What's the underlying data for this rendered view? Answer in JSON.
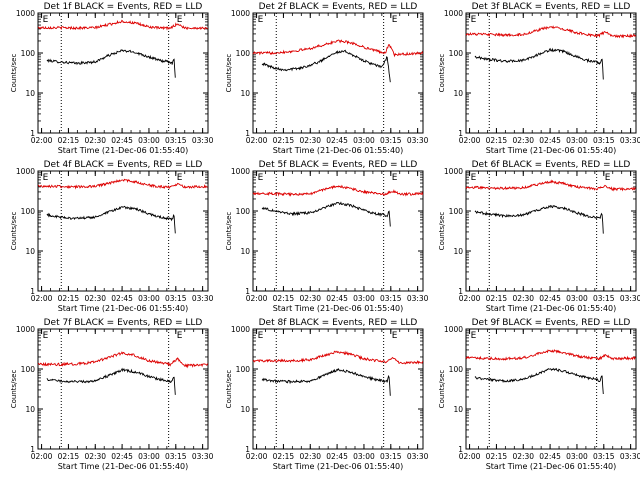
{
  "colors": {
    "events": "#000000",
    "lld": "#dd0000",
    "frame": "#000000",
    "background": "#ffffff"
  },
  "chart_data": [
    {
      "type": "line",
      "title": "Det 1f BLACK = Events, RED = LLD",
      "xlabel": "Start Time (21-Dec-06 01:55:40)",
      "ylabel": "Counts/sec",
      "x_ticks": [
        "02:00",
        "02:15",
        "02:30",
        "02:45",
        "03:00",
        "03:15",
        "03:30"
      ],
      "y_ticks": [
        "1",
        "10",
        "100",
        "1000"
      ],
      "xlim": [
        "01:58",
        "03:33"
      ],
      "ylim": [
        1,
        1000
      ],
      "yscale": "log",
      "grid": false,
      "markers": [
        {
          "label": "E",
          "time": "02:00"
        },
        {
          "label": "E",
          "time": "03:15"
        }
      ],
      "vlines": [
        "02:11",
        "03:11"
      ],
      "series": [
        {
          "name": "Events",
          "color": "black",
          "x": [
            "02:03",
            "02:10",
            "02:20",
            "02:30",
            "02:37",
            "02:45",
            "02:52",
            "03:00",
            "03:06",
            "03:11",
            "03:13",
            "03:14",
            "03:15"
          ],
          "values": [
            65,
            60,
            55,
            60,
            85,
            115,
            105,
            80,
            65,
            60,
            55,
            80,
            15
          ]
        },
        {
          "name": "LLD",
          "color": "red",
          "x": [
            "01:58",
            "02:10",
            "02:20",
            "02:30",
            "02:38",
            "02:45",
            "02:52",
            "03:00",
            "03:06",
            "03:12",
            "03:16",
            "03:20",
            "03:33"
          ],
          "values": [
            430,
            430,
            420,
            430,
            520,
            620,
            560,
            450,
            420,
            420,
            540,
            420,
            420
          ]
        }
      ]
    },
    {
      "type": "line",
      "title": "Det 2f BLACK = Events, RED = LLD",
      "xlabel": "Start Time (21-Dec-06 01:55:40)",
      "ylabel": "Counts/sec",
      "x_ticks": [
        "02:00",
        "02:15",
        "02:30",
        "02:45",
        "03:00",
        "03:15",
        "03:30"
      ],
      "y_ticks": [
        "1",
        "10",
        "100",
        "1000"
      ],
      "xlim": [
        "01:58",
        "03:33"
      ],
      "ylim": [
        1,
        1000
      ],
      "yscale": "log",
      "grid": false,
      "markers": [
        {
          "label": "E",
          "time": "02:00"
        },
        {
          "label": "E",
          "time": "03:15"
        }
      ],
      "vlines": [
        "02:11",
        "03:11"
      ],
      "series": [
        {
          "name": "Events",
          "color": "black",
          "x": [
            "02:03",
            "02:08",
            "02:15",
            "02:25",
            "02:35",
            "02:43",
            "02:50",
            "02:58",
            "03:06",
            "03:10",
            "03:13",
            "03:15"
          ],
          "values": [
            55,
            45,
            38,
            42,
            60,
            100,
            110,
            70,
            50,
            45,
            80,
            15
          ]
        },
        {
          "name": "LLD",
          "color": "red",
          "x": [
            "01:58",
            "02:08",
            "02:20",
            "02:30",
            "02:40",
            "02:45",
            "02:52",
            "03:00",
            "03:08",
            "03:12",
            "03:14",
            "03:17",
            "03:33"
          ],
          "values": [
            100,
            100,
            110,
            130,
            170,
            200,
            185,
            140,
            110,
            100,
            170,
            90,
            100
          ]
        }
      ]
    },
    {
      "type": "line",
      "title": "Det 3f BLACK = Events, RED = LLD",
      "xlabel": "Start Time (21-Dec-06 01:55:40)",
      "ylabel": "Counts/sec",
      "x_ticks": [
        "02:00",
        "02:15",
        "02:30",
        "02:45",
        "03:00",
        "03:15",
        "03:30"
      ],
      "y_ticks": [
        "1",
        "10",
        "100",
        "1000"
      ],
      "xlim": [
        "01:58",
        "03:33"
      ],
      "ylim": [
        1,
        1000
      ],
      "yscale": "log",
      "grid": false,
      "markers": [
        {
          "label": "E",
          "time": "02:00"
        },
        {
          "label": "E",
          "time": "03:15"
        }
      ],
      "vlines": [
        "02:11",
        "03:11"
      ],
      "series": [
        {
          "name": "Events",
          "color": "black",
          "x": [
            "02:03",
            "02:10",
            "02:20",
            "02:30",
            "02:38",
            "02:45",
            "02:52",
            "03:00",
            "03:06",
            "03:11",
            "03:13",
            "03:14",
            "03:15"
          ],
          "values": [
            80,
            70,
            62,
            65,
            90,
            120,
            110,
            80,
            65,
            60,
            55,
            80,
            15
          ]
        },
        {
          "name": "LLD",
          "color": "red",
          "x": [
            "01:58",
            "02:10",
            "02:20",
            "02:30",
            "02:38",
            "02:45",
            "02:52",
            "03:00",
            "03:08",
            "03:12",
            "03:16",
            "03:20",
            "03:33"
          ],
          "values": [
            300,
            290,
            280,
            290,
            370,
            450,
            400,
            320,
            280,
            270,
            340,
            260,
            270
          ]
        }
      ]
    },
    {
      "type": "line",
      "title": "Det 4f BLACK = Events, RED = LLD",
      "xlabel": "Start Time (21-Dec-06 01:55:40)",
      "ylabel": "Counts/sec",
      "x_ticks": [
        "02:00",
        "02:15",
        "02:30",
        "02:45",
        "03:00",
        "03:15",
        "03:30"
      ],
      "y_ticks": [
        "1",
        "10",
        "100",
        "1000"
      ],
      "xlim": [
        "01:58",
        "03:33"
      ],
      "ylim": [
        1,
        1000
      ],
      "yscale": "log",
      "grid": false,
      "markers": [
        {
          "label": "E",
          "time": "02:00"
        },
        {
          "label": "E",
          "time": "03:15"
        }
      ],
      "vlines": [
        "02:11",
        "03:11"
      ],
      "series": [
        {
          "name": "Events",
          "color": "black",
          "x": [
            "02:03",
            "02:10",
            "02:20",
            "02:30",
            "02:38",
            "02:45",
            "02:52",
            "03:00",
            "03:06",
            "03:11",
            "03:13",
            "03:14",
            "03:15"
          ],
          "values": [
            80,
            70,
            65,
            70,
            95,
            125,
            115,
            85,
            70,
            65,
            60,
            85,
            18
          ]
        },
        {
          "name": "LLD",
          "color": "red",
          "x": [
            "01:58",
            "02:10",
            "02:20",
            "02:30",
            "02:38",
            "02:45",
            "02:52",
            "03:00",
            "03:08",
            "03:12",
            "03:16",
            "03:20",
            "03:33"
          ],
          "values": [
            420,
            410,
            400,
            410,
            500,
            600,
            540,
            440,
            400,
            400,
            480,
            400,
            410
          ]
        }
      ]
    },
    {
      "type": "line",
      "title": "Det 5f BLACK = Events, RED = LLD",
      "xlabel": "Start Time (21-Dec-06 01:55:40)",
      "ylabel": "Counts/sec",
      "x_ticks": [
        "02:00",
        "02:15",
        "02:30",
        "02:45",
        "03:00",
        "03:15",
        "03:30"
      ],
      "y_ticks": [
        "1",
        "10",
        "100",
        "1000"
      ],
      "xlim": [
        "01:58",
        "03:33"
      ],
      "ylim": [
        1,
        1000
      ],
      "yscale": "log",
      "grid": false,
      "markers": [
        {
          "label": "E",
          "time": "02:00"
        },
        {
          "label": "E",
          "time": "03:15"
        }
      ],
      "vlines": [
        "02:11",
        "03:11"
      ],
      "series": [
        {
          "name": "Events",
          "color": "black",
          "x": [
            "02:03",
            "02:10",
            "02:20",
            "02:30",
            "02:38",
            "02:45",
            "02:52",
            "03:00",
            "03:06",
            "03:11",
            "03:13",
            "03:14",
            "03:15"
          ],
          "values": [
            120,
            100,
            85,
            90,
            120,
            160,
            140,
            105,
            85,
            80,
            75,
            110,
            30
          ]
        },
        {
          "name": "LLD",
          "color": "red",
          "x": [
            "01:58",
            "02:10",
            "02:20",
            "02:30",
            "02:38",
            "02:45",
            "02:52",
            "03:00",
            "03:08",
            "03:12",
            "03:16",
            "03:20",
            "03:33"
          ],
          "values": [
            280,
            270,
            260,
            270,
            350,
            420,
            370,
            300,
            270,
            260,
            320,
            260,
            270
          ]
        }
      ]
    },
    {
      "type": "line",
      "title": "Det 6f BLACK = Events, RED = LLD",
      "xlabel": "Start Time (21-Dec-06 01:55:40)",
      "ylabel": "Counts/sec",
      "x_ticks": [
        "02:00",
        "02:15",
        "02:30",
        "02:45",
        "03:00",
        "03:15",
        "03:30"
      ],
      "y_ticks": [
        "1",
        "10",
        "100",
        "1000"
      ],
      "xlim": [
        "01:58",
        "03:33"
      ],
      "ylim": [
        1,
        1000
      ],
      "yscale": "log",
      "grid": false,
      "markers": [
        {
          "label": "E",
          "time": "02:00"
        },
        {
          "label": "E",
          "time": "03:15"
        }
      ],
      "vlines": [
        "02:11",
        "03:11"
      ],
      "series": [
        {
          "name": "Events",
          "color": "black",
          "x": [
            "02:03",
            "02:10",
            "02:20",
            "02:30",
            "02:38",
            "02:45",
            "02:52",
            "03:00",
            "03:06",
            "03:11",
            "03:13",
            "03:14",
            "03:15"
          ],
          "values": [
            95,
            85,
            75,
            80,
            105,
            130,
            120,
            90,
            75,
            70,
            65,
            90,
            20
          ]
        },
        {
          "name": "LLD",
          "color": "red",
          "x": [
            "01:58",
            "02:10",
            "02:20",
            "02:30",
            "02:38",
            "02:45",
            "02:52",
            "03:00",
            "03:08",
            "03:12",
            "03:16",
            "03:20",
            "03:33"
          ],
          "values": [
            390,
            380,
            370,
            380,
            460,
            540,
            490,
            400,
            370,
            360,
            430,
            350,
            360
          ]
        }
      ]
    },
    {
      "type": "line",
      "title": "Det 7f BLACK = Events, RED = LLD",
      "xlabel": "Start Time (21-Dec-06 01:55:40)",
      "ylabel": "Counts/sec",
      "x_ticks": [
        "02:00",
        "02:15",
        "02:30",
        "02:45",
        "03:00",
        "03:15",
        "03:30"
      ],
      "y_ticks": [
        "1",
        "10",
        "100",
        "1000"
      ],
      "xlim": [
        "01:58",
        "03:33"
      ],
      "ylim": [
        1,
        1000
      ],
      "yscale": "log",
      "grid": false,
      "markers": [
        {
          "label": "E",
          "time": "02:00"
        },
        {
          "label": "E",
          "time": "03:15"
        }
      ],
      "vlines": [
        "02:11",
        "03:11"
      ],
      "series": [
        {
          "name": "Events",
          "color": "black",
          "x": [
            "02:03",
            "02:10",
            "02:20",
            "02:30",
            "02:38",
            "02:45",
            "02:52",
            "03:00",
            "03:06",
            "03:11",
            "03:13",
            "03:14",
            "03:15"
          ],
          "values": [
            55,
            50,
            48,
            50,
            70,
            95,
            85,
            65,
            55,
            50,
            48,
            70,
            15
          ]
        },
        {
          "name": "LLD",
          "color": "red",
          "x": [
            "01:58",
            "02:10",
            "02:20",
            "02:30",
            "02:38",
            "02:45",
            "02:52",
            "03:00",
            "03:08",
            "03:12",
            "03:16",
            "03:20",
            "03:33"
          ],
          "values": [
            130,
            130,
            135,
            150,
            200,
            250,
            220,
            160,
            140,
            130,
            180,
            120,
            130
          ]
        }
      ]
    },
    {
      "type": "line",
      "title": "Det 8f BLACK = Events, RED = LLD",
      "xlabel": "Start Time (21-Dec-06 01:55:40)",
      "ylabel": "Counts/sec",
      "x_ticks": [
        "02:00",
        "02:15",
        "02:30",
        "02:45",
        "03:00",
        "03:15",
        "03:30"
      ],
      "y_ticks": [
        "1",
        "10",
        "100",
        "1000"
      ],
      "xlim": [
        "01:58",
        "03:33"
      ],
      "ylim": [
        1,
        1000
      ],
      "yscale": "log",
      "grid": false,
      "markers": [
        {
          "label": "E",
          "time": "02:00"
        },
        {
          "label": "E",
          "time": "03:15"
        }
      ],
      "vlines": [
        "02:11",
        "03:11"
      ],
      "series": [
        {
          "name": "Events",
          "color": "black",
          "x": [
            "02:03",
            "02:10",
            "02:20",
            "02:30",
            "02:38",
            "02:45",
            "02:52",
            "03:00",
            "03:06",
            "03:11",
            "03:13",
            "03:14",
            "03:15"
          ],
          "values": [
            55,
            50,
            48,
            50,
            70,
            95,
            85,
            65,
            55,
            50,
            48,
            70,
            15
          ]
        },
        {
          "name": "LLD",
          "color": "red",
          "x": [
            "01:58",
            "02:10",
            "02:20",
            "02:30",
            "02:38",
            "02:45",
            "02:52",
            "03:00",
            "03:08",
            "03:12",
            "03:16",
            "03:20",
            "03:33"
          ],
          "values": [
            160,
            160,
            160,
            170,
            220,
            270,
            240,
            180,
            160,
            150,
            200,
            140,
            150
          ]
        }
      ]
    },
    {
      "type": "line",
      "title": "Det 9f BLACK = Events, RED = LLD",
      "xlabel": "Start Time (21-Dec-06 01:55:40)",
      "ylabel": "Counts/sec",
      "x_ticks": [
        "02:00",
        "02:15",
        "02:30",
        "02:45",
        "03:00",
        "03:15",
        "03:30"
      ],
      "y_ticks": [
        "1",
        "10",
        "100",
        "1000"
      ],
      "xlim": [
        "01:58",
        "03:33"
      ],
      "ylim": [
        1,
        1000
      ],
      "yscale": "log",
      "grid": false,
      "markers": [
        {
          "label": "E",
          "time": "02:00"
        },
        {
          "label": "E",
          "time": "03:15"
        }
      ],
      "vlines": [
        "02:11",
        "03:11"
      ],
      "series": [
        {
          "name": "Events",
          "color": "black",
          "x": [
            "02:03",
            "02:10",
            "02:20",
            "02:30",
            "02:38",
            "02:45",
            "02:52",
            "03:00",
            "03:06",
            "03:11",
            "03:13",
            "03:14",
            "03:15"
          ],
          "values": [
            60,
            55,
            50,
            55,
            75,
            100,
            90,
            70,
            60,
            55,
            50,
            75,
            15
          ]
        },
        {
          "name": "LLD",
          "color": "red",
          "x": [
            "01:58",
            "02:10",
            "02:20",
            "02:30",
            "02:38",
            "02:45",
            "02:52",
            "03:00",
            "03:08",
            "03:12",
            "03:16",
            "03:20",
            "03:33"
          ],
          "values": [
            190,
            185,
            180,
            190,
            240,
            290,
            260,
            210,
            190,
            180,
            220,
            180,
            190
          ]
        }
      ]
    }
  ]
}
